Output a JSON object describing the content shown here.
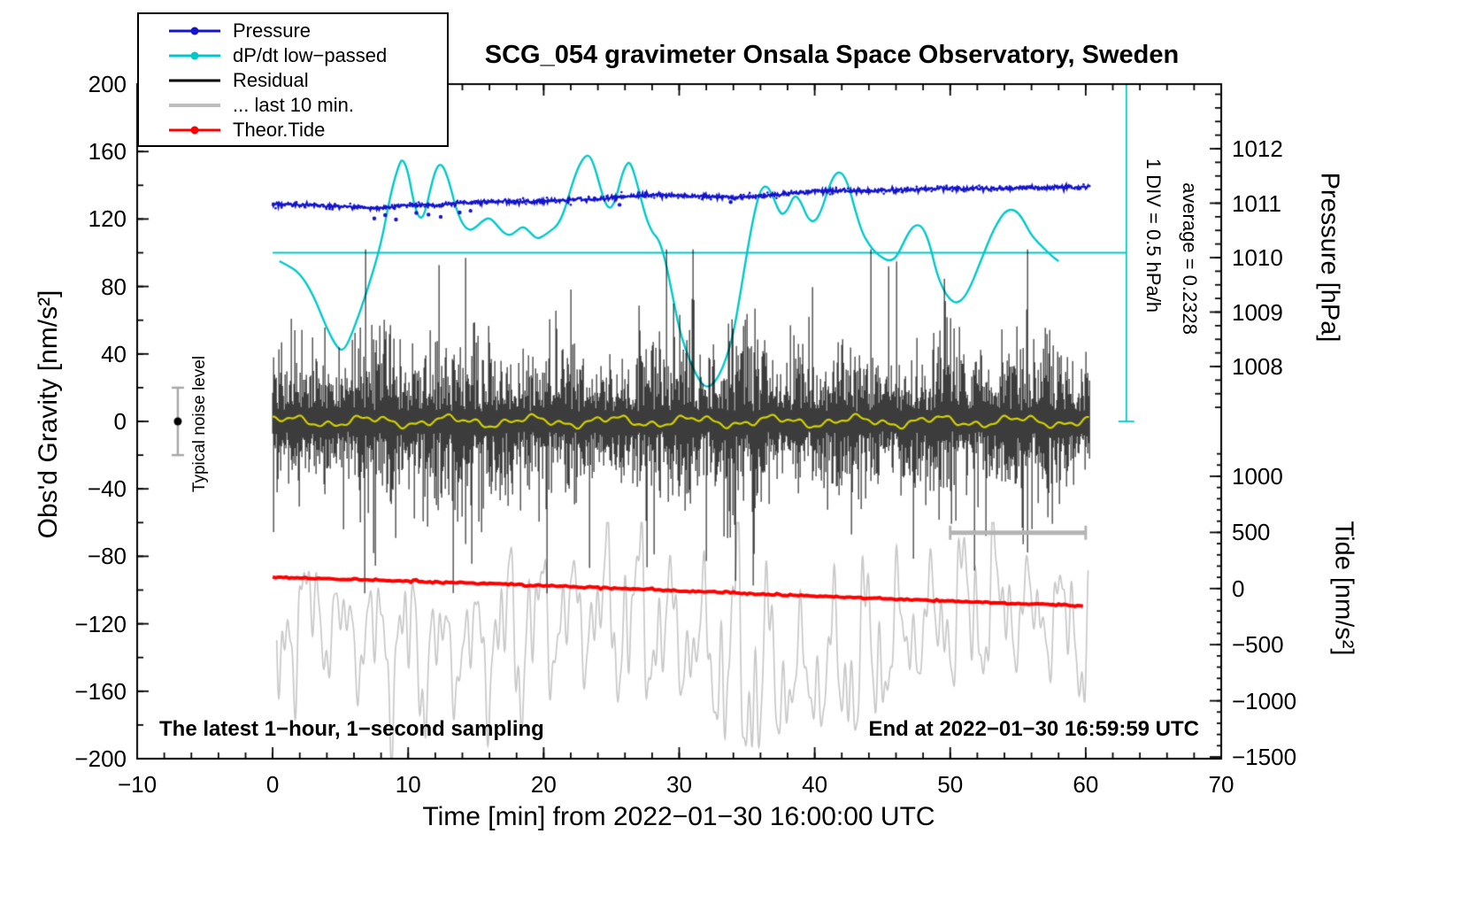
{
  "title": "SCG_054 gravimeter Onsala Space Observatory, Sweden",
  "legend": {
    "items": [
      {
        "label": "Pressure",
        "color": "#1414cc",
        "marker": "line-dot"
      },
      {
        "label": "dP/dt low−passed",
        "color": "#00c8c8",
        "marker": "line-dot"
      },
      {
        "label": "Residual",
        "color": "#000000",
        "marker": "line"
      },
      {
        "label": "... last 10 min.",
        "color": "#bdbdbd",
        "marker": "line"
      },
      {
        "label": "Theor.Tide",
        "color": "#ff0000",
        "marker": "line-dot"
      }
    ]
  },
  "axes": {
    "x": {
      "label": "Time [min] from 2022−01−30 16:00:00 UTC",
      "min": -10,
      "max": 70,
      "ticks": [
        -10,
        0,
        10,
        20,
        30,
        40,
        50,
        60,
        70
      ]
    },
    "y_left": {
      "label": "Obs'd Gravity [nm/s²]",
      "min": -200,
      "max": 200,
      "ticks": [
        200,
        160,
        120,
        80,
        40,
        0,
        -40,
        -80,
        -120,
        -160,
        -200
      ]
    },
    "y_pressure": {
      "label": "Pressure [hPa]",
      "ticks": [
        1012,
        1011,
        1010,
        1009,
        1008
      ]
    },
    "y_tide": {
      "label": "Tide [nm/s²]",
      "ticks": [
        1000,
        500,
        0,
        -500,
        -1000,
        -1500
      ]
    }
  },
  "annotations": {
    "div_scale": "1 DIV = 0.5 hPa/h",
    "average": "average = 0.2328",
    "noise_label": "Typical noise level",
    "sampling_note": "The latest 1−hour, 1−second sampling",
    "end_note": "End at 2022−01−30 16:59:59 UTC"
  },
  "chart_data": {
    "type": "line",
    "x_units": "minutes from 2022-01-30 16:00:00 UTC",
    "x_range_shown": [
      -10,
      70
    ],
    "gravity_axis_range": [
      -200,
      200
    ],
    "series": [
      {
        "name": "Pressure",
        "axis": "pressure-right",
        "units": "hPa",
        "color": "#1414cc",
        "x": [
          0,
          2,
          4,
          6,
          8,
          9,
          10,
          12,
          14,
          16,
          18,
          20,
          22,
          24,
          26,
          28,
          30,
          32,
          34,
          36,
          38,
          40,
          42,
          44,
          46,
          48,
          50,
          52,
          54,
          56,
          58,
          60
        ],
        "y": [
          1010.98,
          1010.97,
          1010.95,
          1010.93,
          1010.9,
          1010.94,
          1010.97,
          1010.96,
          1011.0,
          1011.02,
          1011.03,
          1011.04,
          1011.06,
          1011.08,
          1011.12,
          1011.15,
          1011.14,
          1011.12,
          1011.1,
          1011.13,
          1011.17,
          1011.22,
          1011.23,
          1011.22,
          1011.24,
          1011.26,
          1011.27,
          1011.26,
          1011.27,
          1011.28,
          1011.29,
          1011.3
        ],
        "outliers_x": [
          7.5,
          8.3,
          9.1,
          10.6,
          11.5,
          12.4,
          13.8,
          14.6,
          25.6,
          33.8
        ],
        "outliers_y": [
          1010.72,
          1010.78,
          1010.7,
          1010.82,
          1010.79,
          1010.75,
          1010.83,
          1010.86,
          1010.97,
          1011.02
        ]
      },
      {
        "name": "dP/dt low-passed",
        "color": "#00c8c8",
        "units": "gravity-axis units; 1 DIV (40 units) = 0.5 hPa/h; line at 100 = average 0.2328 hPa/h",
        "x": [
          0.5,
          1,
          2,
          3,
          4,
          4.8,
          5.3,
          6,
          7,
          8,
          8.7,
          9.3,
          9.6,
          10,
          10.4,
          10.8,
          11.2,
          11.7,
          12.1,
          12.5,
          13,
          13.5,
          14,
          14.5,
          15,
          15.5,
          16,
          16.5,
          17,
          17.5,
          18,
          18.5,
          19,
          19.5,
          20,
          20.5,
          21,
          21.5,
          22,
          22.5,
          23,
          23.4,
          23.8,
          24.2,
          24.6,
          25,
          25.4,
          25.8,
          26.2,
          26.5,
          27,
          27.5,
          28,
          28.5,
          29,
          29.5,
          30,
          30.5,
          31,
          31.5,
          32,
          32.5,
          33,
          33.5,
          34,
          34.5,
          35,
          35.5,
          36,
          36.5,
          37,
          37.5,
          38,
          38.5,
          39,
          39.5,
          40,
          40.5,
          41,
          41.5,
          42,
          42.5,
          43,
          43.5,
          44,
          44.5,
          45,
          45.5,
          46,
          46.5,
          47,
          47.5,
          48,
          48.5,
          49,
          49.5,
          50,
          50.5,
          51,
          51.5,
          52,
          52.5,
          53,
          53.5,
          54,
          54.5,
          55,
          55.5,
          56,
          57,
          57.5,
          58
        ],
        "y": [
          95,
          93,
          88,
          75,
          55,
          43,
          42,
          55,
          78,
          105,
          135,
          152,
          156,
          148,
          130,
          120,
          122,
          140,
          151,
          153,
          143,
          127,
          117,
          113,
          115,
          119,
          121,
          117,
          112,
          110,
          113,
          116,
          112,
          108,
          110,
          113,
          116,
          124,
          138,
          150,
          157,
          158,
          150,
          138,
          128,
          126,
          134,
          147,
          154,
          152,
          138,
          122,
          112,
          108,
          95,
          75,
          55,
          42,
          32,
          24,
          20,
          22,
          28,
          38,
          52,
          75,
          100,
          122,
          138,
          140,
          132,
          122,
          125,
          135,
          130,
          120,
          118,
          125,
          138,
          147,
          148,
          140,
          125,
          112,
          105,
          100,
          97,
          95,
          97,
          105,
          113,
          117,
          115,
          105,
          88,
          78,
          72,
          70,
          73,
          80,
          90,
          100,
          110,
          118,
          124,
          126,
          124,
          118,
          110,
          102,
          98,
          95
        ]
      },
      {
        "name": "Residual",
        "color": "#000000",
        "units": "nm/s² (gravity axis)",
        "mean": 0,
        "typical_sigma": 21,
        "spike_probability": 0.015,
        "max_abs": 102,
        "x_range": [
          0,
          60.3
        ]
      },
      {
        "name": "Residual smoothed",
        "color": "#cfcf00",
        "units": "nm/s² (gravity axis)",
        "mean": 0,
        "amplitude": 3.5,
        "x_range": [
          0,
          60.3
        ]
      },
      {
        "name": "Residual last 10 min",
        "color": "#c8c8c8",
        "units": "gravity-axis units (offset trace)",
        "baseline": -128,
        "extremes": [
          -199,
          -60
        ],
        "x_range": [
          0.3,
          60.2
        ]
      },
      {
        "name": "Theor.Tide",
        "axis": "tide-right",
        "units": "nm/s² (tide axis)",
        "color": "#ff0000",
        "x": [
          0,
          5,
          10,
          15,
          20,
          25,
          30,
          35,
          40,
          45,
          50,
          55,
          60
        ],
        "y": [
          100,
          84,
          66,
          47,
          26,
          4,
          -20,
          -44,
          -67,
          -90,
          -112,
          -134,
          -155
        ]
      }
    ],
    "reference_lines": {
      "dpdt_average_gravity_y": 100,
      "dpdt_average_x_range": [
        0,
        63
      ],
      "div_scalebar_x": 63,
      "div_scalebar_gravity_range": [
        0,
        200
      ]
    },
    "noise_level_marker": {
      "x": -7,
      "y": 0,
      "error": 20
    },
    "last10_window_bar": {
      "x_range": [
        50,
        60
      ],
      "gravity_y": -66
    }
  }
}
